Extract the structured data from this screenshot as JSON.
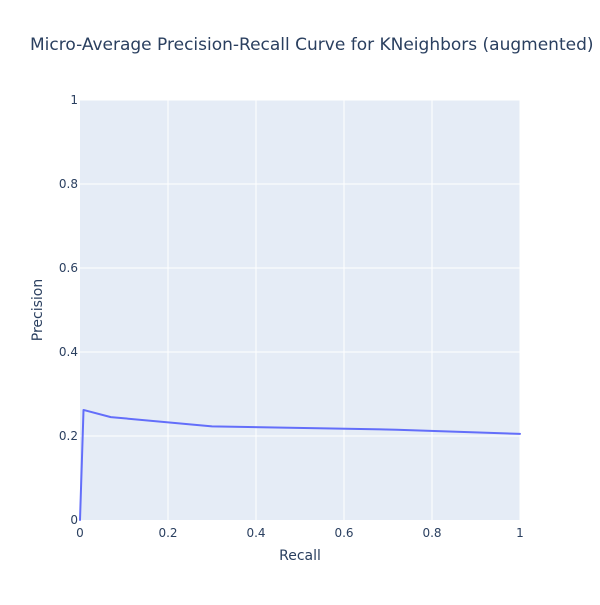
{
  "chart_data": {
    "type": "line",
    "title": "Micro-Average Precision-Recall Curve for KNeighbors (augmented)",
    "xlabel": "Recall",
    "ylabel": "Precision",
    "xlim": [
      0,
      1
    ],
    "ylim": [
      0,
      1
    ],
    "x_ticks": [
      "0",
      "0.2",
      "0.4",
      "0.6",
      "0.8",
      "1"
    ],
    "y_ticks": [
      "0",
      "0.2",
      "0.4",
      "0.6",
      "0.8",
      "1"
    ],
    "grid": true,
    "legend": "none",
    "colors": {
      "line": "#636efa",
      "plot_background": "#e5ecf6",
      "grid": "#ffffff",
      "text": "#2a3f5f"
    },
    "series": [
      {
        "x": [
          0.0,
          0.008,
          0.07,
          0.3,
          0.72,
          1.0
        ],
        "y": [
          0.0,
          0.262,
          0.245,
          0.223,
          0.215,
          0.205
        ]
      }
    ]
  }
}
